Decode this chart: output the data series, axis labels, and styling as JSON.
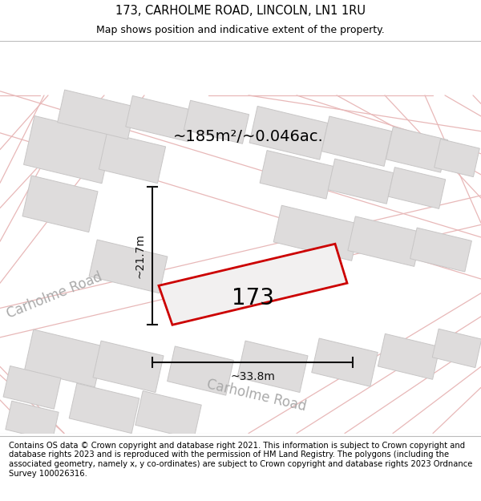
{
  "title": "173, CARHOLME ROAD, LINCOLN, LN1 1RU",
  "subtitle": "Map shows position and indicative extent of the property.",
  "footer": "Contains OS data © Crown copyright and database right 2021. This information is subject to Crown copyright and database rights 2023 and is reproduced with the permission of HM Land Registry. The polygons (including the associated geometry, namely x, y co-ordinates) are subject to Crown copyright and database rights 2023 Ordnance Survey 100026316.",
  "area_label": "~185m²/~0.046ac.",
  "width_label": "~33.8m",
  "height_label": "~21.7m",
  "number_label": "173",
  "map_bg": "#f2f0f0",
  "block_fill": "#dedcdc",
  "block_edge": "#c8c6c6",
  "road_line_color": "#e8b8b8",
  "highlight_color": "#cc0000",
  "highlight_fill": "#f2f0f0",
  "dim_color": "#111111",
  "road_label_color": "#aaaaaa",
  "title_fontsize": 10.5,
  "subtitle_fontsize": 9,
  "footer_fontsize": 7.2,
  "area_fontsize": 14,
  "number_fontsize": 20,
  "road_label_fontsize": 12,
  "dim_fontsize": 10
}
